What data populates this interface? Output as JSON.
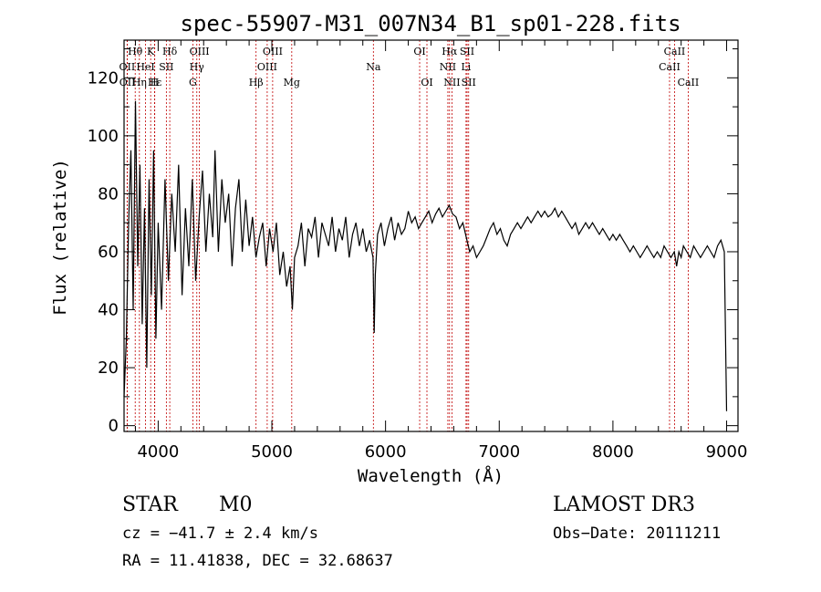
{
  "chart_data": {
    "type": "line",
    "title": "spec-55907-M31_007N34_B1_sp01-228.fits",
    "xlabel": "Wavelength (Å)",
    "ylabel": "Flux (relative)",
    "xlim": [
      3700,
      9100
    ],
    "ylim": [
      -2,
      133
    ],
    "xticks": [
      "4000",
      "5000",
      "6000",
      "7000",
      "8000",
      "9000"
    ],
    "yticks": [
      "0",
      "20",
      "40",
      "60",
      "80",
      "100",
      "120"
    ],
    "grid": false,
    "series": [
      {
        "name": "flux",
        "x": [
          3700,
          3720,
          3740,
          3760,
          3780,
          3800,
          3820,
          3840,
          3860,
          3880,
          3900,
          3920,
          3940,
          3960,
          3980,
          4000,
          4030,
          4060,
          4090,
          4120,
          4150,
          4180,
          4210,
          4240,
          4270,
          4300,
          4330,
          4360,
          4390,
          4420,
          4450,
          4480,
          4500,
          4530,
          4560,
          4590,
          4620,
          4650,
          4680,
          4710,
          4740,
          4770,
          4800,
          4830,
          4860,
          4890,
          4920,
          4950,
          4980,
          5010,
          5040,
          5070,
          5100,
          5130,
          5160,
          5180,
          5200,
          5230,
          5260,
          5290,
          5320,
          5350,
          5380,
          5410,
          5440,
          5470,
          5500,
          5530,
          5560,
          5590,
          5620,
          5650,
          5680,
          5710,
          5740,
          5770,
          5800,
          5830,
          5860,
          5890,
          5900,
          5910,
          5930,
          5960,
          5990,
          6020,
          6050,
          6080,
          6110,
          6140,
          6170,
          6200,
          6230,
          6260,
          6290,
          6320,
          6350,
          6380,
          6410,
          6440,
          6470,
          6500,
          6530,
          6560,
          6590,
          6620,
          6650,
          6680,
          6710,
          6740,
          6770,
          6800,
          6830,
          6860,
          6890,
          6920,
          6950,
          6980,
          7010,
          7040,
          7070,
          7100,
          7130,
          7160,
          7190,
          7220,
          7250,
          7280,
          7310,
          7340,
          7370,
          7400,
          7430,
          7460,
          7490,
          7520,
          7550,
          7580,
          7610,
          7640,
          7670,
          7700,
          7730,
          7760,
          7790,
          7820,
          7850,
          7880,
          7910,
          7940,
          7970,
          8000,
          8030,
          8060,
          8090,
          8120,
          8150,
          8180,
          8210,
          8240,
          8270,
          8300,
          8330,
          8360,
          8390,
          8420,
          8450,
          8480,
          8510,
          8540,
          8560,
          8580,
          8600,
          8620,
          8650,
          8680,
          8710,
          8740,
          8770,
          8800,
          8830,
          8860,
          8890,
          8920,
          8950,
          8980,
          9000
        ],
        "y": [
          10,
          30,
          70,
          95,
          40,
          112,
          55,
          90,
          35,
          75,
          20,
          85,
          45,
          95,
          30,
          70,
          40,
          85,
          50,
          80,
          60,
          90,
          45,
          75,
          55,
          85,
          50,
          72,
          88,
          60,
          80,
          65,
          95,
          60,
          85,
          70,
          80,
          55,
          75,
          85,
          60,
          78,
          62,
          72,
          58,
          65,
          70,
          55,
          68,
          60,
          70,
          52,
          60,
          48,
          55,
          40,
          58,
          62,
          70,
          55,
          68,
          65,
          72,
          58,
          70,
          66,
          62,
          72,
          60,
          68,
          64,
          72,
          58,
          66,
          70,
          62,
          68,
          60,
          64,
          58,
          32,
          52,
          66,
          70,
          62,
          68,
          72,
          64,
          70,
          66,
          68,
          74,
          70,
          72,
          68,
          70,
          72,
          74,
          70,
          73,
          75,
          72,
          74,
          76,
          73,
          72,
          68,
          70,
          65,
          60,
          62,
          58,
          60,
          62,
          65,
          68,
          70,
          66,
          68,
          64,
          62,
          66,
          68,
          70,
          68,
          70,
          72,
          70,
          72,
          74,
          72,
          74,
          72,
          73,
          75,
          72,
          74,
          72,
          70,
          68,
          70,
          66,
          68,
          70,
          68,
          70,
          68,
          66,
          68,
          66,
          64,
          66,
          64,
          66,
          64,
          62,
          60,
          62,
          60,
          58,
          60,
          62,
          60,
          58,
          60,
          58,
          62,
          60,
          58,
          60,
          55,
          60,
          58,
          62,
          60,
          58,
          62,
          60,
          58,
          60,
          62,
          60,
          58,
          62,
          64,
          60,
          5
        ]
      }
    ],
    "emission_lines": [
      {
        "label": "Hθ",
        "wave": 3798,
        "row": 0
      },
      {
        "label": "OII",
        "wave": 3727,
        "row": 1
      },
      {
        "label": "OII",
        "wave": 3729,
        "row": 2
      },
      {
        "label": "K",
        "wave": 3934,
        "row": 0
      },
      {
        "label": "HeI",
        "wave": 3889,
        "row": 1
      },
      {
        "label": "Hη",
        "wave": 3835,
        "row": 2
      },
      {
        "label": "Hε",
        "wave": 3970,
        "row": 2
      },
      {
        "label": "H",
        "wave": 3968,
        "row": 2
      },
      {
        "label": "SII",
        "wave": 4072,
        "row": 1
      },
      {
        "label": "Hδ",
        "wave": 4102,
        "row": 0
      },
      {
        "label": "OIII",
        "wave": 4363,
        "row": 0
      },
      {
        "label": "Hγ",
        "wave": 4340,
        "row": 1
      },
      {
        "label": "G",
        "wave": 4305,
        "row": 2
      },
      {
        "label": "Hβ",
        "wave": 4861,
        "row": 2
      },
      {
        "label": "OIII",
        "wave": 4959,
        "row": 1
      },
      {
        "label": "OIII",
        "wave": 5007,
        "row": 0
      },
      {
        "label": "Mg",
        "wave": 5175,
        "row": 2
      },
      {
        "label": "Na",
        "wave": 5893,
        "row": 1
      },
      {
        "label": "OI",
        "wave": 6300,
        "row": 0
      },
      {
        "label": "OI",
        "wave": 6364,
        "row": 2
      },
      {
        "label": "NII",
        "wave": 6548,
        "row": 1
      },
      {
        "label": "Hα",
        "wave": 6563,
        "row": 0
      },
      {
        "label": "NII",
        "wave": 6584,
        "row": 2
      },
      {
        "label": "SII",
        "wave": 6717,
        "row": 0
      },
      {
        "label": "Li",
        "wave": 6708,
        "row": 1
      },
      {
        "label": "SII",
        "wave": 6731,
        "row": 2
      },
      {
        "label": "CaII",
        "wave": 8498,
        "row": 1
      },
      {
        "label": "CaII",
        "wave": 8542,
        "row": 0
      },
      {
        "label": "CaII",
        "wave": 8662,
        "row": 2
      }
    ]
  },
  "info": {
    "class": "STAR",
    "subclass": "M0",
    "survey": "LAMOST DR3",
    "cz": "cz = −41.7 ± 2.4 km/s",
    "obs_date": "Obs−Date: 20111211",
    "coords": "RA =  11.41838, DEC =  32.68637"
  },
  "colors": {
    "spectrum": "#000000",
    "line_marker": "#c00000",
    "axes": "#000000"
  }
}
